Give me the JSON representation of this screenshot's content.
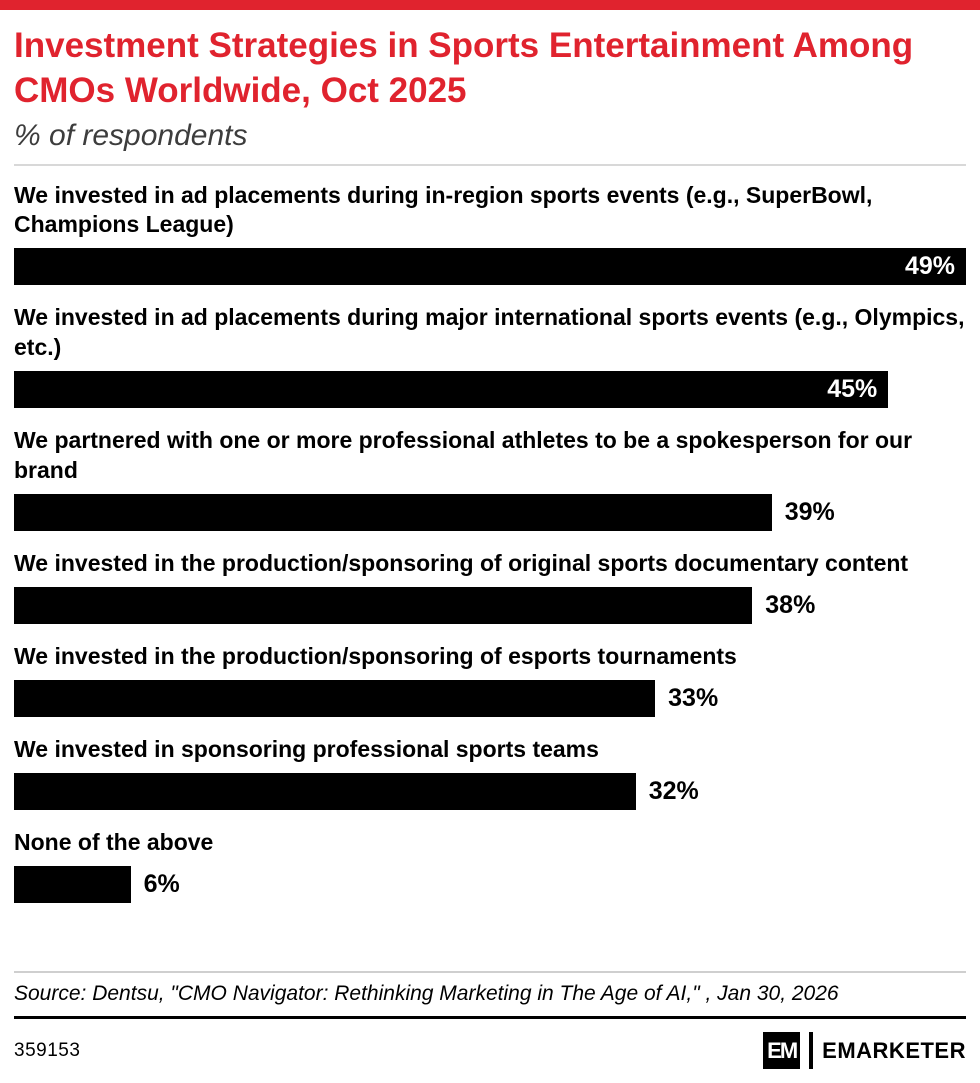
{
  "meta": {
    "accent_color": "#e0232e",
    "bar_color": "#000000",
    "inside_label_color": "#ffffff"
  },
  "header": {
    "title": "Investment Strategies in Sports Entertainment Among CMOs Worldwide, Oct 2025",
    "subtitle": "% of respondents"
  },
  "chart_data": {
    "type": "bar",
    "orientation": "horizontal",
    "title": "Investment Strategies in Sports Entertainment Among CMOs Worldwide, Oct 2025",
    "subtitle": "% of respondents",
    "unit": "%",
    "xlim": [
      0,
      49
    ],
    "grid": false,
    "legend": false,
    "bar_color": "#000000",
    "categories": [
      "We invested in ad placements during in-region sports events (e.g., SuperBowl, Champions League)",
      "We invested in ad placements during major international sports events (e.g., Olympics, etc.)",
      "We partnered with one or more professional athletes to be a spokesperson for our brand",
      "We invested in the production/sponsoring of original sports documentary content",
      "We invested in the production/sponsoring of esports tournaments",
      "We invested in sponsoring professional sports teams",
      "None of the above"
    ],
    "values": [
      49,
      45,
      39,
      38,
      33,
      32,
      6
    ],
    "value_labels": [
      "49%",
      "45%",
      "39%",
      "38%",
      "33%",
      "32%",
      "6%"
    ]
  },
  "footer": {
    "source": "Source: Dentsu, \"CMO Navigator: Rethinking Marketing in The Age of AI,\" , Jan 30, 2026",
    "chart_id": "359153",
    "logo_mark": "EM",
    "brand": "EMARKETER"
  }
}
